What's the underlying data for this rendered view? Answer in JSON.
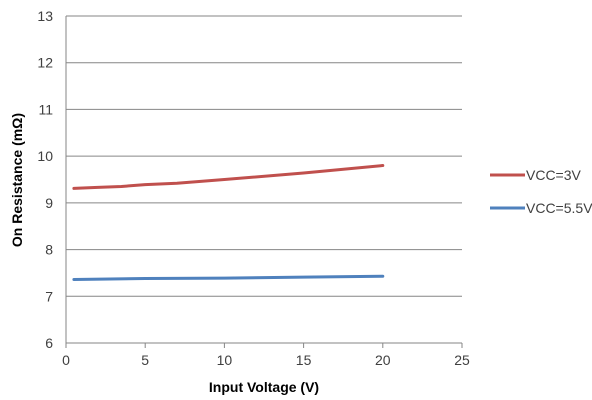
{
  "chart_data": {
    "type": "line",
    "xlabel": "Input Voltage (V)",
    "ylabel": "On Resistance (mΩ)",
    "xlim": [
      0,
      25
    ],
    "ylim": [
      6,
      13
    ],
    "xticks": [
      0,
      5,
      10,
      15,
      20,
      25
    ],
    "yticks": [
      6,
      7,
      8,
      9,
      10,
      11,
      12,
      13
    ],
    "grid": "horizontal",
    "legend_position": "right",
    "series": [
      {
        "name": "VCC=3V",
        "color": "#C0504D",
        "x": [
          0.5,
          2,
          3.5,
          5,
          7,
          10,
          15,
          20
        ],
        "y": [
          9.31,
          9.33,
          9.35,
          9.39,
          9.42,
          9.5,
          9.64,
          9.8
        ]
      },
      {
        "name": "VCC=5.5V",
        "color": "#4F81BD",
        "x": [
          0.5,
          5,
          10,
          15,
          20
        ],
        "y": [
          7.36,
          7.38,
          7.39,
          7.41,
          7.43
        ]
      }
    ]
  }
}
